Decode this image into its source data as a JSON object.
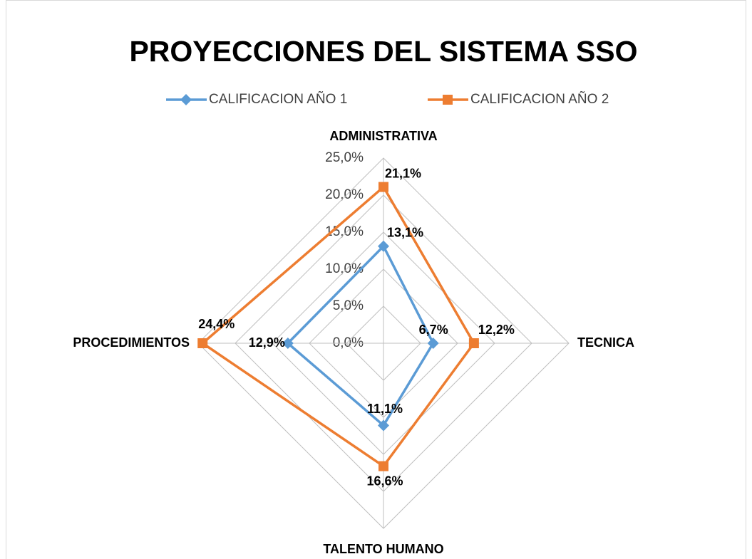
{
  "chart_data": {
    "type": "radar",
    "title": "PROYECCIONES DEL SISTEMA SSO",
    "categories": [
      "ADMINISTRATIVA",
      "TECNICA",
      "TALENTO HUMANO",
      "PROCEDIMIENTOS"
    ],
    "series": [
      {
        "name": "CALIFICACION AÑO 1",
        "color": "#5b9bd5",
        "marker": "diamond",
        "values": [
          13.1,
          6.7,
          11.1,
          12.9
        ],
        "value_labels": [
          "13,1%",
          "6,7%",
          "11,1%",
          "12,9%"
        ]
      },
      {
        "name": "CALIFICACION AÑO 2",
        "color": "#ed7d31",
        "marker": "square",
        "values": [
          21.1,
          12.2,
          16.6,
          24.4
        ],
        "value_labels": [
          "21,1%",
          "12,2%",
          "16,6%",
          "24,4%"
        ]
      }
    ],
    "rlim": [
      0,
      25
    ],
    "rticks": [
      {
        "value": 0,
        "label": "0,0%"
      },
      {
        "value": 5,
        "label": "5,0%"
      },
      {
        "value": 10,
        "label": "10,0%"
      },
      {
        "value": 15,
        "label": "15,0%"
      },
      {
        "value": 20,
        "label": "20,0%"
      },
      {
        "value": 25,
        "label": "25,0%"
      }
    ],
    "grid": true,
    "legend": "top"
  }
}
